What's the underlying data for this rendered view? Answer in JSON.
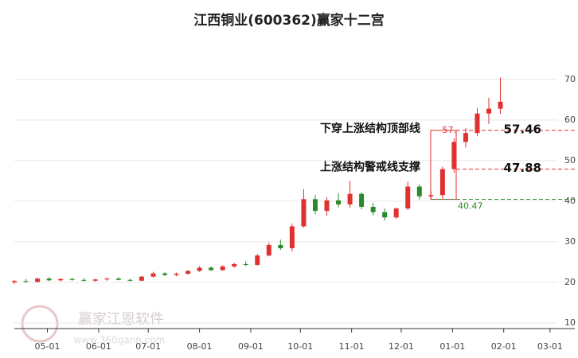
{
  "chart_data": {
    "type": "candlestick",
    "title": "江西铜业(600362)赢家十二宫",
    "watermark": "赢家江恩软件",
    "watermark_url": "www.360gann.com",
    "x": [
      "04-11",
      "04-18",
      "04-25",
      "05-02",
      "05-09",
      "05-16",
      "05-23",
      "05-30",
      "06-06",
      "06-13",
      "06-20",
      "06-27",
      "07-04",
      "07-11",
      "07-18",
      "07-25",
      "08-01",
      "08-08",
      "08-15",
      "08-22",
      "08-29",
      "09-05",
      "09-12",
      "09-19",
      "09-26",
      "10-03",
      "10-10",
      "10-17",
      "10-24",
      "10-31",
      "11-07",
      "11-14",
      "11-21",
      "11-28",
      "12-05",
      "12-12",
      "12-19",
      "12-26",
      "01-02",
      "01-09",
      "01-16",
      "01-23",
      "01-30"
    ],
    "open": [
      20.0,
      20.3,
      20.1,
      20.9,
      20.5,
      20.8,
      20.6,
      20.4,
      20.7,
      20.9,
      20.6,
      20.4,
      21.4,
      22.2,
      21.8,
      22.1,
      22.8,
      23.6,
      23.0,
      23.9,
      24.5,
      24.3,
      26.6,
      29.2,
      28.4,
      33.8,
      40.5,
      37.6,
      40.2,
      39.2,
      41.8,
      38.6,
      37.3,
      36.0,
      38.2,
      43.6,
      41.2,
      41.5,
      47.9,
      54.6,
      56.8,
      61.6,
      62.8
    ],
    "high": [
      20.6,
      20.8,
      21.2,
      21.3,
      21.0,
      21.1,
      21.0,
      20.9,
      21.2,
      21.3,
      20.9,
      21.6,
      22.6,
      22.5,
      22.4,
      23.0,
      24.0,
      23.9,
      24.2,
      24.8,
      25.2,
      27.0,
      29.8,
      30.5,
      34.5,
      43.0,
      41.5,
      41.0,
      42.0,
      45.0,
      42.2,
      39.6,
      38.2,
      38.5,
      44.8,
      44.2,
      42.5,
      48.5,
      55.5,
      58.0,
      63.0,
      65.5,
      70.5
    ],
    "low": [
      19.6,
      19.9,
      20.0,
      20.3,
      20.2,
      20.4,
      20.2,
      20.1,
      20.4,
      20.5,
      20.2,
      20.3,
      21.2,
      21.6,
      21.5,
      21.9,
      22.6,
      22.8,
      22.9,
      23.6,
      24.0,
      24.1,
      26.4,
      28.0,
      27.6,
      33.5,
      36.8,
      36.4,
      38.5,
      38.4,
      38.0,
      36.5,
      35.2,
      35.6,
      37.8,
      40.4,
      40.5,
      40.6,
      47.0,
      53.2,
      56.0,
      59.0,
      61.5
    ],
    "close": [
      20.3,
      20.1,
      20.9,
      20.5,
      20.8,
      20.6,
      20.4,
      20.7,
      20.9,
      20.6,
      20.4,
      21.4,
      22.2,
      21.8,
      22.1,
      22.8,
      23.6,
      23.0,
      23.9,
      24.5,
      24.3,
      26.6,
      29.2,
      28.4,
      33.8,
      40.5,
      37.6,
      40.2,
      39.2,
      41.8,
      38.6,
      37.3,
      36.0,
      38.2,
      43.6,
      41.2,
      41.5,
      47.9,
      54.6,
      56.8,
      61.6,
      62.8,
      64.5
    ],
    "up_color": "#e03030",
    "down_color": "#2a8a2a",
    "xlim": [
      "04-11",
      "03-16"
    ],
    "xticks": [
      "05-01",
      "06-01",
      "07-01",
      "08-01",
      "09-01",
      "10-01",
      "11-01",
      "12-01",
      "01-01",
      "02-01",
      "03-01"
    ],
    "ylim": [
      8.6,
      78.8
    ],
    "yticks": [
      10,
      20,
      30,
      40,
      50,
      60,
      70
    ],
    "grid": true,
    "levels": [
      {
        "label": "下穿上涨结构顶部线",
        "value": 57.46,
        "color": "#e03030"
      },
      {
        "label": "上涨结构警戒线支撑",
        "value": 47.88,
        "color": "#e03030"
      }
    ],
    "box": {
      "high_label": "57.",
      "low": 40.47,
      "low_color": "#2a8a2a",
      "color": "#e03030"
    }
  }
}
